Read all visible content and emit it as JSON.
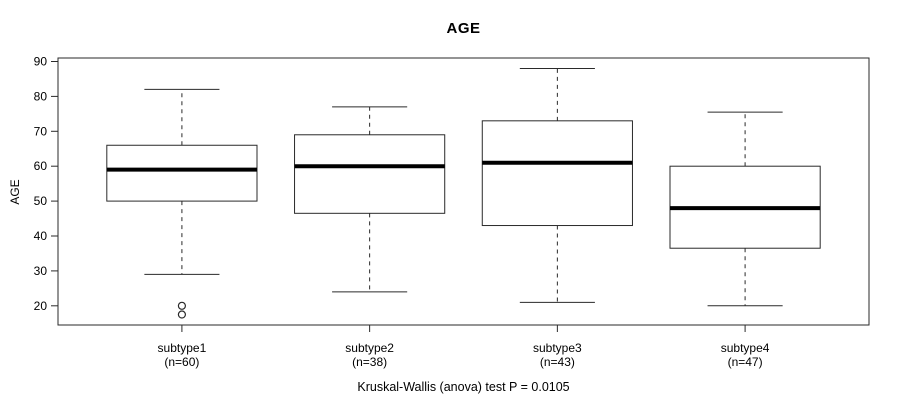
{
  "chart_data": {
    "type": "boxplot",
    "title": "AGE",
    "ylabel": "AGE",
    "xlabel": "",
    "caption": "Kruskal-Wallis (anova) test P = 0.0105",
    "ylim": [
      14.5,
      91
    ],
    "yticks": [
      20,
      30,
      40,
      50,
      60,
      70,
      80,
      90
    ],
    "grid": false,
    "legend": "none",
    "groups": [
      {
        "label": "subtype1",
        "sublabel": "(n=60)",
        "n": 60,
        "whisker_low": 29,
        "q1": 50,
        "median": 59,
        "q3": 66,
        "whisker_high": 82,
        "outliers": [
          20,
          17.5
        ]
      },
      {
        "label": "subtype2",
        "sublabel": "(n=38)",
        "n": 38,
        "whisker_low": 24,
        "q1": 46.5,
        "median": 60,
        "q3": 69,
        "whisker_high": 77,
        "outliers": []
      },
      {
        "label": "subtype3",
        "sublabel": "(n=43)",
        "n": 43,
        "whisker_low": 21,
        "q1": 43,
        "median": 61,
        "q3": 73,
        "whisker_high": 88,
        "outliers": []
      },
      {
        "label": "subtype4",
        "sublabel": "(n=47)",
        "n": 47,
        "whisker_low": 20,
        "q1": 36.5,
        "median": 48,
        "q3": 60,
        "whisker_high": 75.5,
        "outliers": []
      }
    ],
    "colors": {
      "line": "#2a2a2a",
      "median": "#000000",
      "background": "#ffffff",
      "box_fill": "#ffffff"
    }
  }
}
